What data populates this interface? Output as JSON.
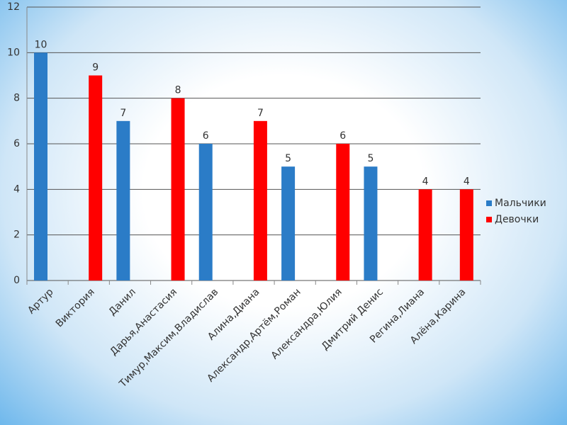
{
  "chart_data": {
    "type": "bar",
    "categories": [
      "Артур",
      "Виктория",
      "Данил",
      "Дарья,Анастасия",
      "Тимур,Максим,Владислав",
      "Алина,Диана",
      "Александр,Артём,Роман",
      "Александра,Юлия",
      "Дмитрий Денис",
      "Регина,Лиана",
      "Алёна,Карина"
    ],
    "series": [
      {
        "name": "Мальчики",
        "color": "#2b7cc7",
        "values": [
          10,
          null,
          7,
          null,
          6,
          null,
          5,
          null,
          5,
          null,
          null
        ]
      },
      {
        "name": "Девочки",
        "color": "#ff0000",
        "values": [
          null,
          9,
          null,
          8,
          null,
          7,
          null,
          6,
          null,
          4,
          4
        ]
      }
    ],
    "ylim": [
      0,
      12
    ],
    "yticks": [
      0,
      2,
      4,
      6,
      8,
      10,
      12
    ],
    "grid": true,
    "legend": "right"
  }
}
